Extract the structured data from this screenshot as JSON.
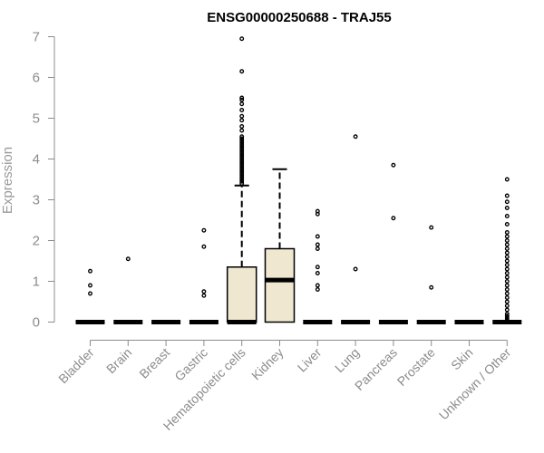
{
  "chart_data": {
    "type": "box",
    "title": "ENSG00000250688 - TRAJ55",
    "xlabel": "",
    "ylabel": "Expression",
    "ylim": [
      0,
      7
    ],
    "yticks": [
      0,
      1,
      2,
      3,
      4,
      5,
      6,
      7
    ],
    "box_fill": "#efe7cf",
    "categories": [
      "Bladder",
      "Brain",
      "Breast",
      "Gastric",
      "Hematopoietic cells",
      "Kidney",
      "Liver",
      "Lung",
      "Pancreas",
      "Prostate",
      "Skin",
      "Unknown / Other"
    ],
    "boxes": [
      {
        "name": "Bladder",
        "q1": 0,
        "median": 0,
        "q3": 0,
        "whisker_low": 0,
        "whisker_high": 0,
        "outliers": [
          0.7,
          0.9,
          1.25
        ]
      },
      {
        "name": "Brain",
        "q1": 0,
        "median": 0,
        "q3": 0,
        "whisker_low": 0,
        "whisker_high": 0,
        "outliers": [
          1.55
        ]
      },
      {
        "name": "Breast",
        "q1": 0,
        "median": 0,
        "q3": 0,
        "whisker_low": 0,
        "whisker_high": 0,
        "outliers": []
      },
      {
        "name": "Gastric",
        "q1": 0,
        "median": 0,
        "q3": 0,
        "whisker_low": 0,
        "whisker_high": 0,
        "outliers": [
          0.65,
          0.75,
          1.85,
          2.25
        ]
      },
      {
        "name": "Hematopoietic cells",
        "q1": 0,
        "median": 0,
        "q3": 1.35,
        "whisker_low": 0,
        "whisker_high": 3.35,
        "outliers": [
          3.4,
          3.45,
          3.5,
          3.55,
          3.6,
          3.65,
          3.7,
          3.75,
          3.8,
          3.85,
          3.9,
          3.95,
          4.0,
          4.05,
          4.1,
          4.15,
          4.2,
          4.25,
          4.3,
          4.35,
          4.4,
          4.45,
          4.5,
          4.55,
          4.7,
          4.8,
          4.95,
          5.05,
          5.2,
          5.35,
          5.45,
          5.5,
          6.15,
          6.95
        ]
      },
      {
        "name": "Kidney",
        "q1": 0,
        "median": 1.03,
        "q3": 1.8,
        "whisker_low": 0,
        "whisker_high": 3.75,
        "outliers": []
      },
      {
        "name": "Liver",
        "q1": 0,
        "median": 0,
        "q3": 0,
        "whisker_low": 0,
        "whisker_high": 0,
        "outliers": [
          0.8,
          0.9,
          1.2,
          1.35,
          1.8,
          1.9,
          2.1,
          2.65,
          2.72
        ]
      },
      {
        "name": "Lung",
        "q1": 0,
        "median": 0,
        "q3": 0,
        "whisker_low": 0,
        "whisker_high": 0,
        "outliers": [
          1.3,
          4.55
        ]
      },
      {
        "name": "Pancreas",
        "q1": 0,
        "median": 0,
        "q3": 0,
        "whisker_low": 0,
        "whisker_high": 0,
        "outliers": [
          2.55,
          3.85
        ]
      },
      {
        "name": "Prostate",
        "q1": 0,
        "median": 0,
        "q3": 0,
        "whisker_low": 0,
        "whisker_high": 0,
        "outliers": [
          0.85,
          2.32
        ]
      },
      {
        "name": "Skin",
        "q1": 0,
        "median": 0,
        "q3": 0,
        "whisker_low": 0,
        "whisker_high": 0,
        "outliers": []
      },
      {
        "name": "Unknown / Other",
        "q1": 0,
        "median": 0,
        "q3": 0,
        "whisker_low": 0,
        "whisker_high": 0,
        "outliers": [
          0.05,
          0.1,
          0.15,
          0.2,
          0.3,
          0.4,
          0.5,
          0.6,
          0.7,
          0.8,
          0.9,
          1.0,
          1.1,
          1.2,
          1.3,
          1.4,
          1.5,
          1.6,
          1.7,
          1.8,
          1.9,
          2.0,
          2.1,
          2.2,
          2.4,
          2.6,
          2.8,
          2.95,
          3.1,
          3.5
        ]
      }
    ]
  }
}
